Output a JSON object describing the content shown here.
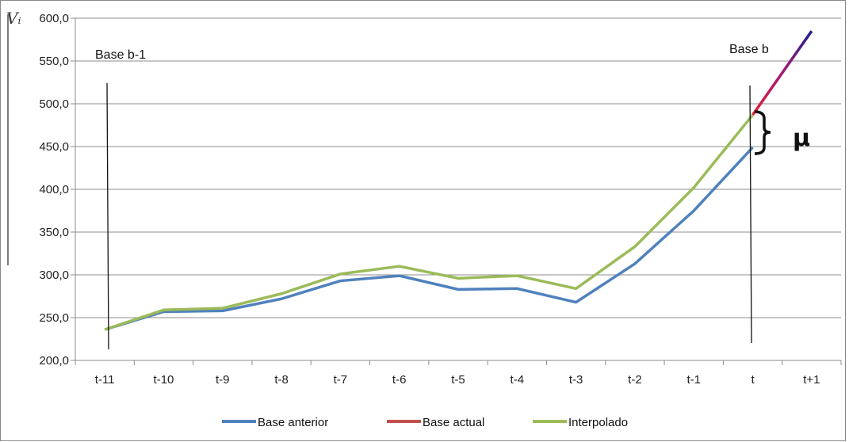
{
  "chart_data": {
    "type": "line",
    "ylabel": "Vᵢ",
    "categories": [
      "t-11",
      "t-10",
      "t-9",
      "t-8",
      "t-7",
      "t-6",
      "t-5",
      "t-4",
      "t-3",
      "t-2",
      "t-1",
      "t",
      "t+1"
    ],
    "ylim": [
      200,
      600
    ],
    "yticks": [
      "200,0",
      "250,0",
      "300,0",
      "350,0",
      "400,0",
      "450,0",
      "500,0",
      "550,0",
      "600,0"
    ],
    "grid": true,
    "legend_position": "bottom",
    "series": [
      {
        "name": "Base anterior",
        "color": "#4F81BD",
        "values": [
          236,
          257,
          258,
          272,
          293,
          299,
          283,
          284,
          268,
          313,
          375,
          449,
          null
        ]
      },
      {
        "name": "Base actual",
        "color": "#C0504D",
        "values": [
          null,
          null,
          null,
          null,
          null,
          null,
          null,
          null,
          null,
          null,
          null,
          487,
          585
        ]
      },
      {
        "name": "Interpolado",
        "color": "#9BBB59",
        "values": [
          236,
          259,
          261,
          278,
          301,
          310,
          296,
          299,
          284,
          333,
          402,
          487,
          null
        ]
      }
    ],
    "annotations": {
      "base_prev": "Base b-1",
      "base_curr": "Base b",
      "gap": "μ"
    }
  }
}
